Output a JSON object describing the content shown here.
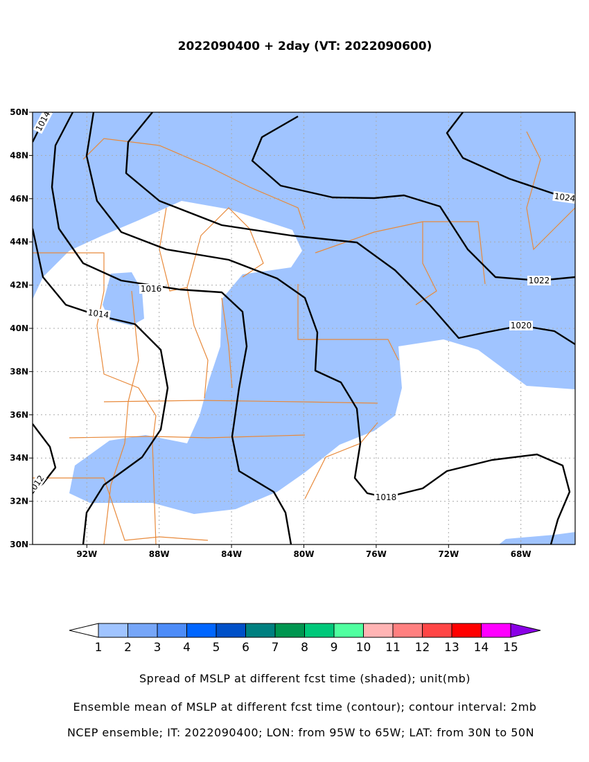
{
  "title": "2022090400 + 2day (VT: 2022090600)",
  "map": {
    "lonlim": [
      -95,
      -65
    ],
    "latlim": [
      30,
      50
    ],
    "lon_ticks": [
      {
        "value": -92,
        "label": "92W"
      },
      {
        "value": -88,
        "label": "88W"
      },
      {
        "value": -84,
        "label": "84W"
      },
      {
        "value": -80,
        "label": "80W"
      },
      {
        "value": -76,
        "label": "76W"
      },
      {
        "value": -72,
        "label": "72W"
      },
      {
        "value": -68,
        "label": "68W"
      }
    ],
    "lat_ticks": [
      {
        "value": 30,
        "label": "30N"
      },
      {
        "value": 32,
        "label": "32N"
      },
      {
        "value": 34,
        "label": "34N"
      },
      {
        "value": 36,
        "label": "36N"
      },
      {
        "value": 38,
        "label": "38N"
      },
      {
        "value": 40,
        "label": "40N"
      },
      {
        "value": 42,
        "label": "42N"
      },
      {
        "value": 44,
        "label": "44N"
      },
      {
        "value": 46,
        "label": "46N"
      },
      {
        "value": 48,
        "label": "48N"
      },
      {
        "value": 50,
        "label": "50N"
      }
    ],
    "grid": true,
    "contours": [
      1014,
      1014,
      1016,
      1018,
      1020,
      1022,
      1022,
      1024,
      1012
    ],
    "shade_color": "#a0c4ff"
  },
  "colorbar": {
    "levels": [
      1,
      2,
      3,
      4,
      5,
      6,
      7,
      8,
      9,
      10,
      11,
      12,
      13,
      14,
      15
    ],
    "colors": [
      "#a0c4ff",
      "#76a6f8",
      "#4d8cf8",
      "#0066ff",
      "#0050c8",
      "#008080",
      "#009650",
      "#00c87a",
      "#50ffa0",
      "#ffb4b4",
      "#ff8080",
      "#ff4646",
      "#ff0000",
      "#ff00ff"
    ],
    "under_color": "#ffffff",
    "over_color": "#8a00e6"
  },
  "captions": [
    "Spread of MSLP at different fcst time (shaded); unit(mb)",
    "Ensemble mean of MSLP at different fcst time (contour); contour interval: 2mb",
    "NCEP ensemble; IT: 2022090400; LON: from 95W to 65W; LAT: from 30N to 50N"
  ]
}
